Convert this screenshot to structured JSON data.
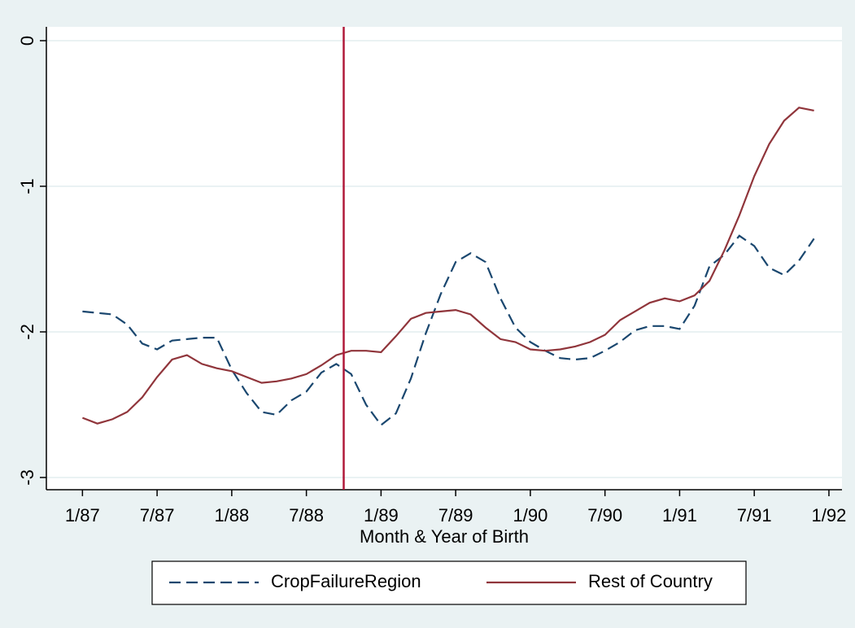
{
  "chart_data": {
    "type": "line",
    "x_label": "Month & Year of Birth",
    "x": [
      324,
      325.2,
      326.4,
      327.6,
      328.8,
      330,
      331.2,
      332.4,
      333.6,
      334.8,
      336,
      337.2,
      338.4,
      339.6,
      340.8,
      342,
      343.2,
      344.4,
      345.6,
      346.8,
      348,
      349.2,
      350.4,
      351.6,
      352.8,
      354,
      355.2,
      356.4,
      357.6,
      358.8,
      360,
      361.2,
      362.4,
      363.6,
      364.8,
      366,
      367.2,
      368.4,
      369.6,
      370.8,
      372,
      373.2,
      374.4,
      375.6,
      376.8,
      378,
      379.2,
      380.4,
      381.6,
      382.8
    ],
    "series": [
      {
        "name": "CropFailureRegion",
        "color": "#1a476f",
        "dash": true,
        "values": [
          -1.86,
          -1.87,
          -1.88,
          -1.95,
          -2.08,
          -2.12,
          -2.06,
          -2.05,
          -2.04,
          -2.04,
          -2.26,
          -2.42,
          -2.55,
          -2.57,
          -2.47,
          -2.41,
          -2.28,
          -2.22,
          -2.29,
          -2.5,
          -2.64,
          -2.56,
          -2.32,
          -2.01,
          -1.74,
          -1.52,
          -1.46,
          -1.52,
          -1.77,
          -1.97,
          -2.07,
          -2.13,
          -2.18,
          -2.19,
          -2.18,
          -2.13,
          -2.07,
          -1.99,
          -1.96,
          -1.96,
          -1.98,
          -1.82,
          -1.55,
          -1.47,
          -1.34,
          -1.41,
          -1.56,
          -1.61,
          -1.51,
          -1.36
        ]
      },
      {
        "name": "Rest of Country",
        "color": "#90353b",
        "dash": false,
        "values": [
          -2.59,
          -2.63,
          -2.6,
          -2.55,
          -2.45,
          -2.31,
          -2.19,
          -2.16,
          -2.22,
          -2.25,
          -2.27,
          -2.31,
          -2.35,
          -2.34,
          -2.32,
          -2.29,
          -2.23,
          -2.16,
          -2.13,
          -2.13,
          -2.14,
          -2.03,
          -1.91,
          -1.87,
          -1.86,
          -1.85,
          -1.88,
          -1.97,
          -2.05,
          -2.07,
          -2.12,
          -2.13,
          -2.12,
          -2.1,
          -2.07,
          -2.02,
          -1.92,
          -1.86,
          -1.8,
          -1.77,
          -1.79,
          -1.75,
          -1.65,
          -1.44,
          -1.2,
          -0.93,
          -0.71,
          -0.55,
          -0.46,
          -0.48
        ]
      }
    ],
    "xline": {
      "value": 345,
      "color": "#b0193a"
    },
    "xlim": [
      321.1,
      385.05
    ],
    "xticks": [
      {
        "value": 324,
        "label": "1/87"
      },
      {
        "value": 330,
        "label": "7/87"
      },
      {
        "value": 336,
        "label": "1/88"
      },
      {
        "value": 342,
        "label": "7/88"
      },
      {
        "value": 348,
        "label": "1/89"
      },
      {
        "value": 354,
        "label": "7/89"
      },
      {
        "value": 360,
        "label": "1/90"
      },
      {
        "value": 366,
        "label": "7/90"
      },
      {
        "value": 372,
        "label": "1/91"
      },
      {
        "value": 378,
        "label": "7/91"
      },
      {
        "value": 384,
        "label": "1/92"
      }
    ],
    "ylim": [
      -3.084,
      0.095
    ],
    "yticks": [
      0,
      -1,
      -2,
      -3
    ],
    "grid": true,
    "legend": "bottom"
  }
}
